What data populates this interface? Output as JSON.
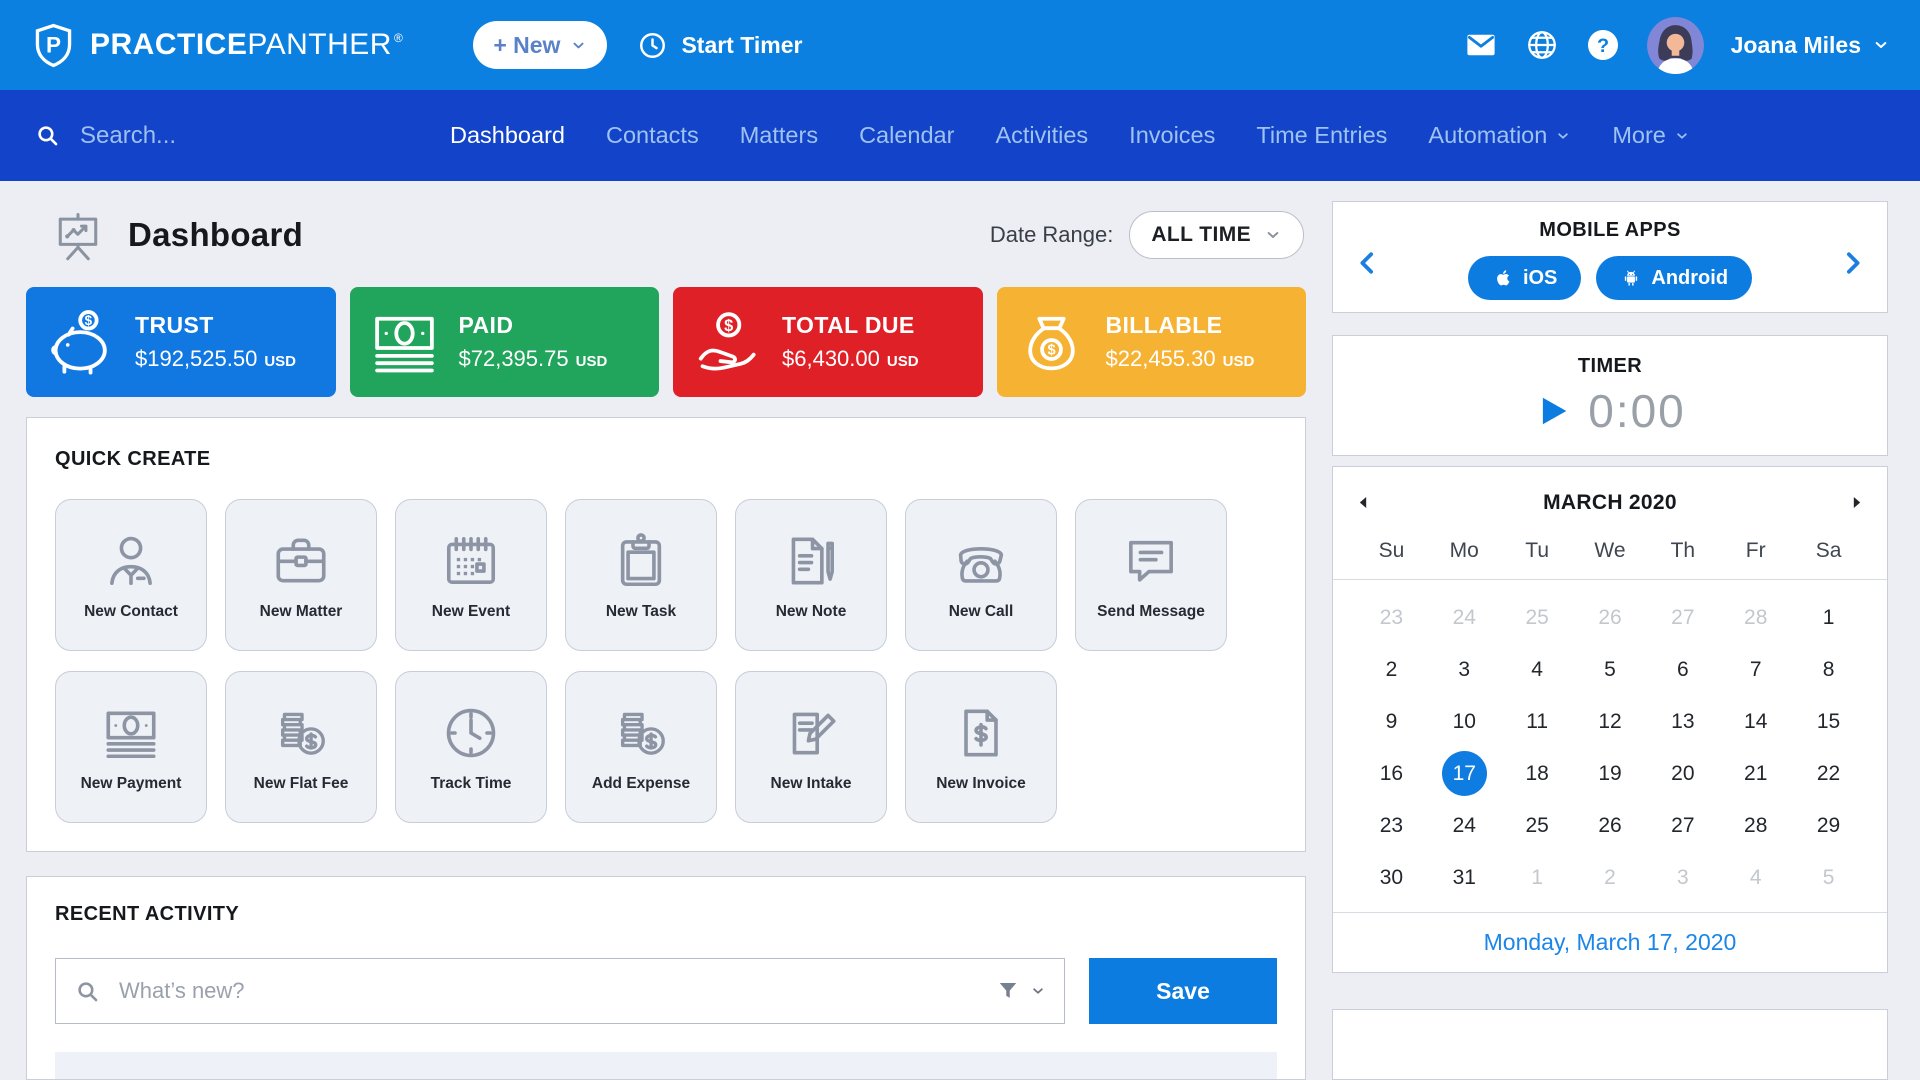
{
  "colors": {
    "topbar": "#0c80e0",
    "navbar": "#1243c9",
    "accent": "#0d7ce0",
    "trust_card": "#1178e2",
    "paid_card": "#21a45c",
    "total_due_card": "#e02027",
    "billable_card": "#f6b233"
  },
  "topbar": {
    "brand_bold": "PRACTICE",
    "brand_light": "PANTHER",
    "registered": "®",
    "new_button_label": "+ New",
    "start_timer_label": "Start Timer",
    "user_name": "Joana Miles"
  },
  "navbar": {
    "search_placeholder": "Search...",
    "items": [
      {
        "label": "Dashboard",
        "active": true
      },
      {
        "label": "Contacts"
      },
      {
        "label": "Matters"
      },
      {
        "label": "Calendar"
      },
      {
        "label": "Activities"
      },
      {
        "label": "Invoices"
      },
      {
        "label": "Time Entries"
      },
      {
        "label": "Automation",
        "dropdown": true
      },
      {
        "label": "More",
        "dropdown": true
      }
    ]
  },
  "header": {
    "title": "Dashboard",
    "date_range_label": "Date Range:",
    "date_range_value": "ALL TIME"
  },
  "stats": [
    {
      "label": "TRUST",
      "amount": "$192,525.50",
      "currency": "USD",
      "color": "#1178e2",
      "icon": "piggy-bank"
    },
    {
      "label": "PAID",
      "amount": "$72,395.75",
      "currency": "USD",
      "color": "#21a45c",
      "icon": "money-bills"
    },
    {
      "label": "TOTAL DUE",
      "amount": "$6,430.00",
      "currency": "USD",
      "color": "#e02027",
      "icon": "hand-coin"
    },
    {
      "label": "BILLABLE",
      "amount": "$22,455.30",
      "currency": "USD",
      "color": "#f6b233",
      "icon": "money-bag"
    }
  ],
  "quick_create": {
    "title": "QUICK CREATE",
    "rows": [
      [
        {
          "label": "New Contact",
          "icon": "person"
        },
        {
          "label": "New Matter",
          "icon": "briefcase"
        },
        {
          "label": "New Event",
          "icon": "calendar"
        },
        {
          "label": "New Task",
          "icon": "clipboard"
        },
        {
          "label": "New Note",
          "icon": "note-pen"
        },
        {
          "label": "New Call",
          "icon": "phone"
        },
        {
          "label": "Send Message",
          "icon": "chat-bubble"
        }
      ],
      [
        {
          "label": "New Payment",
          "icon": "money-bill"
        },
        {
          "label": "New Flat Fee",
          "icon": "coins-dollar"
        },
        {
          "label": "Track Time",
          "icon": "clock"
        },
        {
          "label": "Add Expense",
          "icon": "coins-dollar"
        },
        {
          "label": "New Intake",
          "icon": "paper-pencil"
        },
        {
          "label": "New Invoice",
          "icon": "invoice-doc"
        }
      ]
    ]
  },
  "recent_activity": {
    "title": "RECENT ACTIVITY",
    "search_placeholder": "What’s new?",
    "save_label": "Save"
  },
  "sidebar": {
    "mobile_apps": {
      "title": "MOBILE APPS",
      "ios_label": "iOS",
      "android_label": "Android"
    },
    "timer": {
      "title": "TIMER",
      "value": "0:00"
    },
    "calendar": {
      "month_title": "MARCH 2020",
      "weekdays": [
        "Su",
        "Mo",
        "Tu",
        "We",
        "Th",
        "Fr",
        "Sa"
      ],
      "days": [
        {
          "n": 23,
          "out": true
        },
        {
          "n": 24,
          "out": true
        },
        {
          "n": 25,
          "out": true
        },
        {
          "n": 26,
          "out": true
        },
        {
          "n": 27,
          "out": true
        },
        {
          "n": 28,
          "out": true
        },
        {
          "n": 1
        },
        {
          "n": 2
        },
        {
          "n": 3
        },
        {
          "n": 4
        },
        {
          "n": 5
        },
        {
          "n": 6
        },
        {
          "n": 7
        },
        {
          "n": 8
        },
        {
          "n": 9
        },
        {
          "n": 10
        },
        {
          "n": 11
        },
        {
          "n": 12
        },
        {
          "n": 13
        },
        {
          "n": 14
        },
        {
          "n": 15
        },
        {
          "n": 16
        },
        {
          "n": 17,
          "selected": true
        },
        {
          "n": 18
        },
        {
          "n": 19
        },
        {
          "n": 20
        },
        {
          "n": 21
        },
        {
          "n": 22
        },
        {
          "n": 23
        },
        {
          "n": 24
        },
        {
          "n": 25
        },
        {
          "n": 26
        },
        {
          "n": 27
        },
        {
          "n": 28
        },
        {
          "n": 29
        },
        {
          "n": 30
        },
        {
          "n": 31
        },
        {
          "n": 1,
          "out": true
        },
        {
          "n": 2,
          "out": true
        },
        {
          "n": 3,
          "out": true
        },
        {
          "n": 4,
          "out": true
        },
        {
          "n": 5,
          "out": true
        }
      ],
      "footer": "Monday, March 17, 2020"
    }
  }
}
